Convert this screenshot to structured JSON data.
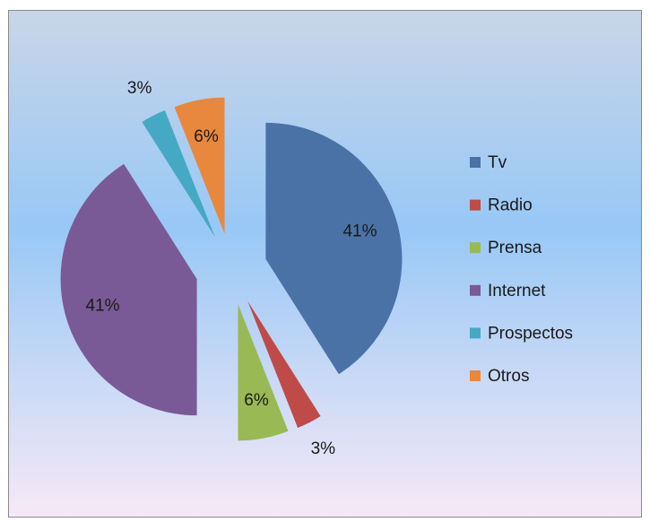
{
  "chart_data": {
    "type": "pie",
    "categories": [
      "Tv",
      "Radio",
      "Prensa",
      "Internet",
      "Prospectos",
      "Otros"
    ],
    "values": [
      41,
      3,
      6,
      41,
      3,
      6
    ],
    "value_labels": [
      "41%",
      "3%",
      "6%",
      "41%",
      "3%",
      "6%"
    ],
    "colors": [
      "#4a72a6",
      "#be4b48",
      "#98b954",
      "#7a5a96",
      "#46a9c3",
      "#e8883e"
    ],
    "legend": "right",
    "exploded": true
  }
}
